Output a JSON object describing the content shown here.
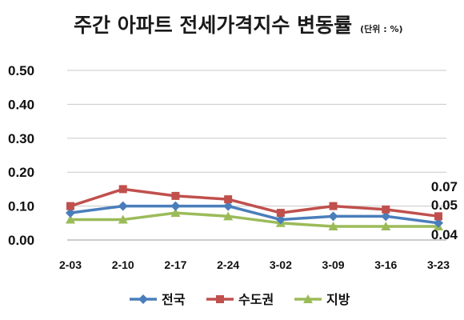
{
  "chart_data": {
    "type": "line",
    "title": "주간 아파트 전세가격지수 변동률",
    "unit_label": "(단위 : %)",
    "categories": [
      "2-03",
      "2-10",
      "2-17",
      "2-24",
      "3-02",
      "3-09",
      "3-16",
      "3-23"
    ],
    "ylim": [
      0,
      0.5
    ],
    "yticks": [
      "0.00",
      "0.10",
      "0.20",
      "0.30",
      "0.40",
      "0.50"
    ],
    "grid": true,
    "legend_position": "bottom",
    "series": [
      {
        "name": "전국",
        "color": "#4a7ebb",
        "marker": "diamond",
        "values": [
          0.08,
          0.1,
          0.1,
          0.1,
          0.06,
          0.07,
          0.07,
          0.05
        ]
      },
      {
        "name": "수도권",
        "color": "#c0504d",
        "marker": "square",
        "values": [
          0.1,
          0.15,
          0.13,
          0.12,
          0.08,
          0.1,
          0.09,
          0.07
        ]
      },
      {
        "name": "지방",
        "color": "#9bbb59",
        "marker": "triangle",
        "values": [
          0.06,
          0.06,
          0.08,
          0.07,
          0.05,
          0.04,
          0.04,
          0.04
        ]
      }
    ],
    "annotations": [
      "0.07",
      "0.05",
      "0.04"
    ]
  }
}
